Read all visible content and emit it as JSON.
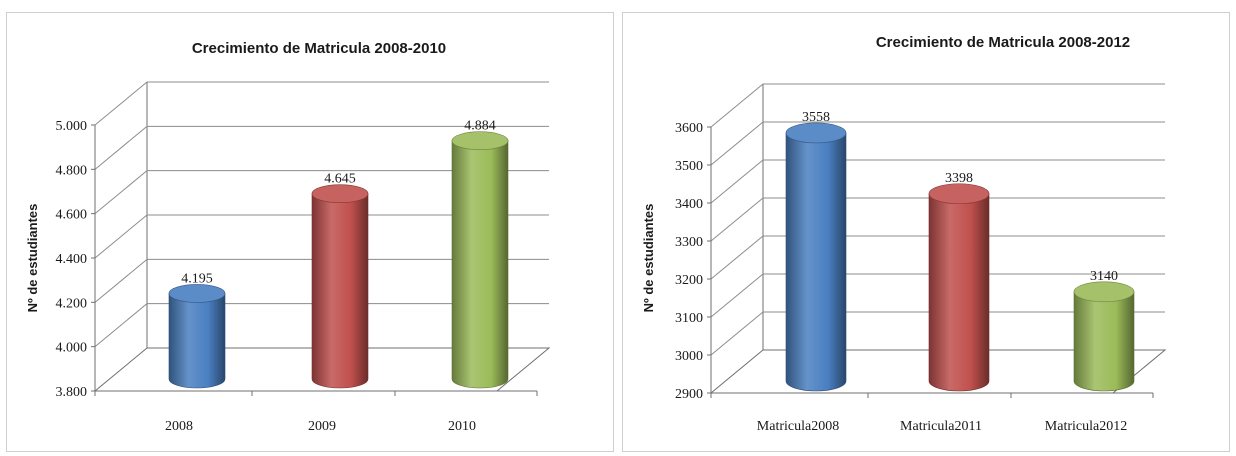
{
  "chart_data": [
    {
      "type": "bar",
      "title": "Crecimiento de Matricula 2008-2010",
      "xlabel": "",
      "ylabel": "Nº de estudiantes",
      "ylim": [
        3800,
        5000
      ],
      "yticks": [
        3800,
        4000,
        4200,
        4400,
        4600,
        4800,
        5000
      ],
      "ytick_labels": [
        "3.800",
        "4.000",
        "4.200",
        "4.400",
        "4.600",
        "4.800",
        "5.000"
      ],
      "categories": [
        "2008",
        "2009",
        "2010"
      ],
      "values": [
        4195,
        4645,
        4884
      ],
      "data_labels": [
        "4.195",
        "4.645",
        "4.884"
      ],
      "colors": [
        "#4a7fc1",
        "#c0504d",
        "#9bbb59"
      ],
      "grid": true,
      "style": "3d-cylinder"
    },
    {
      "type": "bar",
      "title": "Crecimiento de Matricula 2008-2012",
      "xlabel": "",
      "ylabel": "Nº de estudiantes",
      "ylim": [
        2900,
        3600
      ],
      "yticks": [
        2900,
        3000,
        3100,
        3200,
        3300,
        3400,
        3500,
        3600
      ],
      "ytick_labels": [
        "2900",
        "3000",
        "3100",
        "3200",
        "3300",
        "3400",
        "3500",
        "3600"
      ],
      "categories": [
        "Matricula2008",
        "Matricula2011",
        "Matricula2012"
      ],
      "values": [
        3558,
        3398,
        3140
      ],
      "data_labels": [
        "3558",
        "3398",
        "3140"
      ],
      "colors": [
        "#4a7fc1",
        "#c0504d",
        "#9bbb59"
      ],
      "grid": true,
      "style": "3d-cylinder"
    }
  ]
}
